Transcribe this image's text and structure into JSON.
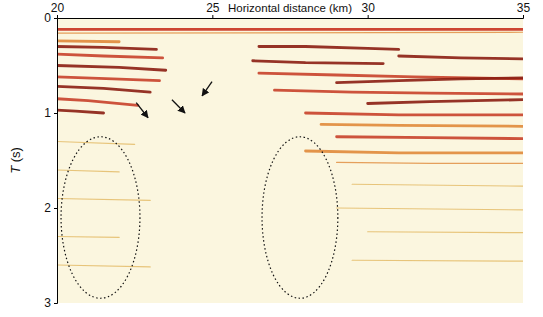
{
  "chart_data": {
    "type": "seismic_section",
    "xlabel": "Horizontal distance (km)",
    "ylabel": "T (s)",
    "xlim": [
      20,
      35
    ],
    "xticks": [
      20,
      25,
      30,
      35
    ],
    "ylim": [
      0,
      3
    ],
    "yticks": [
      0,
      1,
      2,
      3
    ],
    "series": [
      {
        "color": "#c8321e",
        "line_style": "thick",
        "x": [
          20,
          35
        ],
        "values": [
          0.12,
          0.12
        ]
      },
      {
        "color": "#e0893a",
        "line_style": "thin",
        "x": [
          20,
          35
        ],
        "values": [
          0.16,
          0.15
        ]
      },
      {
        "color": "#e0893a",
        "line_style": "thick",
        "x": [
          20,
          22
        ],
        "values": [
          0.24,
          0.25
        ]
      },
      {
        "color": "#8b1e12",
        "line_style": "thick",
        "x": [
          20,
          21.5,
          23.2
        ],
        "values": [
          0.3,
          0.31,
          0.33
        ]
      },
      {
        "color": "#c8412a",
        "line_style": "thick",
        "x": [
          20,
          21.5,
          23.4
        ],
        "values": [
          0.38,
          0.4,
          0.42
        ]
      },
      {
        "color": "#8b1e12",
        "line_style": "thick",
        "x": [
          20,
          22,
          23.5
        ],
        "values": [
          0.5,
          0.52,
          0.55
        ]
      },
      {
        "color": "#c8412a",
        "line_style": "thick",
        "x": [
          20,
          21.8,
          23.3
        ],
        "values": [
          0.62,
          0.64,
          0.66
        ]
      },
      {
        "color": "#8b1e12",
        "line_style": "thick",
        "x": [
          20,
          21.5,
          23.0
        ],
        "values": [
          0.72,
          0.74,
          0.78
        ]
      },
      {
        "color": "#c8412a",
        "line_style": "thick",
        "x": [
          20,
          21,
          22.6
        ],
        "values": [
          0.85,
          0.87,
          0.92
        ]
      },
      {
        "color": "#8b1e12",
        "line_style": "thick",
        "x": [
          20,
          20.6,
          21.5
        ],
        "values": [
          0.97,
          0.98,
          1.0
        ]
      },
      {
        "color": "#e2b860",
        "line_style": "thin",
        "x": [
          20,
          22.5
        ],
        "values": [
          1.3,
          1.33
        ]
      },
      {
        "color": "#e2b860",
        "line_style": "thin",
        "x": [
          20,
          22
        ],
        "values": [
          1.6,
          1.62
        ]
      },
      {
        "color": "#e2b860",
        "line_style": "thin",
        "x": [
          20,
          23
        ],
        "values": [
          1.9,
          1.92
        ]
      },
      {
        "color": "#e2b860",
        "line_style": "thin",
        "x": [
          20,
          22
        ],
        "values": [
          2.3,
          2.31
        ]
      },
      {
        "color": "#e2b860",
        "line_style": "thin",
        "x": [
          20,
          23
        ],
        "values": [
          2.6,
          2.62
        ]
      },
      {
        "color": "#8b1e12",
        "line_style": "thick",
        "x": [
          26.5,
          28,
          30,
          31
        ],
        "values": [
          0.3,
          0.3,
          0.32,
          0.33
        ]
      },
      {
        "color": "#8b1e12",
        "line_style": "thick",
        "x": [
          31,
          33,
          35
        ],
        "values": [
          0.4,
          0.42,
          0.43
        ]
      },
      {
        "color": "#8b1e12",
        "line_style": "thick",
        "x": [
          26.3,
          28,
          30.5
        ],
        "values": [
          0.45,
          0.47,
          0.48
        ]
      },
      {
        "color": "#c8412a",
        "line_style": "thick",
        "x": [
          26.5,
          29,
          31.5,
          35
        ],
        "values": [
          0.58,
          0.6,
          0.62,
          0.64
        ]
      },
      {
        "color": "#8b1e12",
        "line_style": "thick",
        "x": [
          29,
          31,
          33,
          35
        ],
        "values": [
          0.68,
          0.66,
          0.64,
          0.63
        ]
      },
      {
        "color": "#c8412a",
        "line_style": "thick",
        "x": [
          27,
          29.5,
          32,
          35
        ],
        "values": [
          0.76,
          0.78,
          0.79,
          0.8
        ]
      },
      {
        "color": "#8b1e12",
        "line_style": "thick",
        "x": [
          30,
          32,
          35
        ],
        "values": [
          0.9,
          0.88,
          0.86
        ]
      },
      {
        "color": "#c8412a",
        "line_style": "thick",
        "x": [
          28,
          31,
          35
        ],
        "values": [
          1.0,
          1.02,
          1.02
        ]
      },
      {
        "color": "#e0893a",
        "line_style": "thick",
        "x": [
          28.5,
          31,
          35
        ],
        "values": [
          1.12,
          1.13,
          1.14
        ]
      },
      {
        "color": "#c8412a",
        "line_style": "thick",
        "x": [
          29,
          32,
          35
        ],
        "values": [
          1.25,
          1.26,
          1.27
        ]
      },
      {
        "color": "#e0893a",
        "line_style": "thick",
        "x": [
          28,
          31,
          35
        ],
        "values": [
          1.4,
          1.42,
          1.42
        ]
      },
      {
        "color": "#e0893a",
        "line_style": "thin",
        "x": [
          29,
          32,
          35
        ],
        "values": [
          1.52,
          1.53,
          1.53
        ]
      },
      {
        "color": "#e2b860",
        "line_style": "thin",
        "x": [
          29.5,
          35
        ],
        "values": [
          1.75,
          1.77
        ]
      },
      {
        "color": "#e2b860",
        "line_style": "thin",
        "x": [
          29,
          35
        ],
        "values": [
          2.0,
          2.02
        ]
      },
      {
        "color": "#e2b860",
        "line_style": "thin",
        "x": [
          30,
          35
        ],
        "values": [
          2.25,
          2.26
        ]
      },
      {
        "color": "#e2b860",
        "line_style": "thin",
        "x": [
          29.5,
          35
        ],
        "values": [
          2.55,
          2.56
        ]
      }
    ],
    "ellipses": [
      {
        "cx": 21.4,
        "ct": 2.1,
        "rx": 1.27,
        "rt": 0.85
      },
      {
        "cx": 27.82,
        "ct": 2.1,
        "rx": 1.22,
        "rt": 0.85
      }
    ],
    "arrows": [
      {
        "x": [
          22.55,
          22.93
        ],
        "t": [
          0.89,
          1.05
        ]
      },
      {
        "x": [
          23.7,
          24.12
        ],
        "t": [
          0.86,
          1.0
        ]
      },
      {
        "x": [
          24.99,
          24.67
        ],
        "t": [
          0.67,
          0.82
        ]
      }
    ]
  }
}
